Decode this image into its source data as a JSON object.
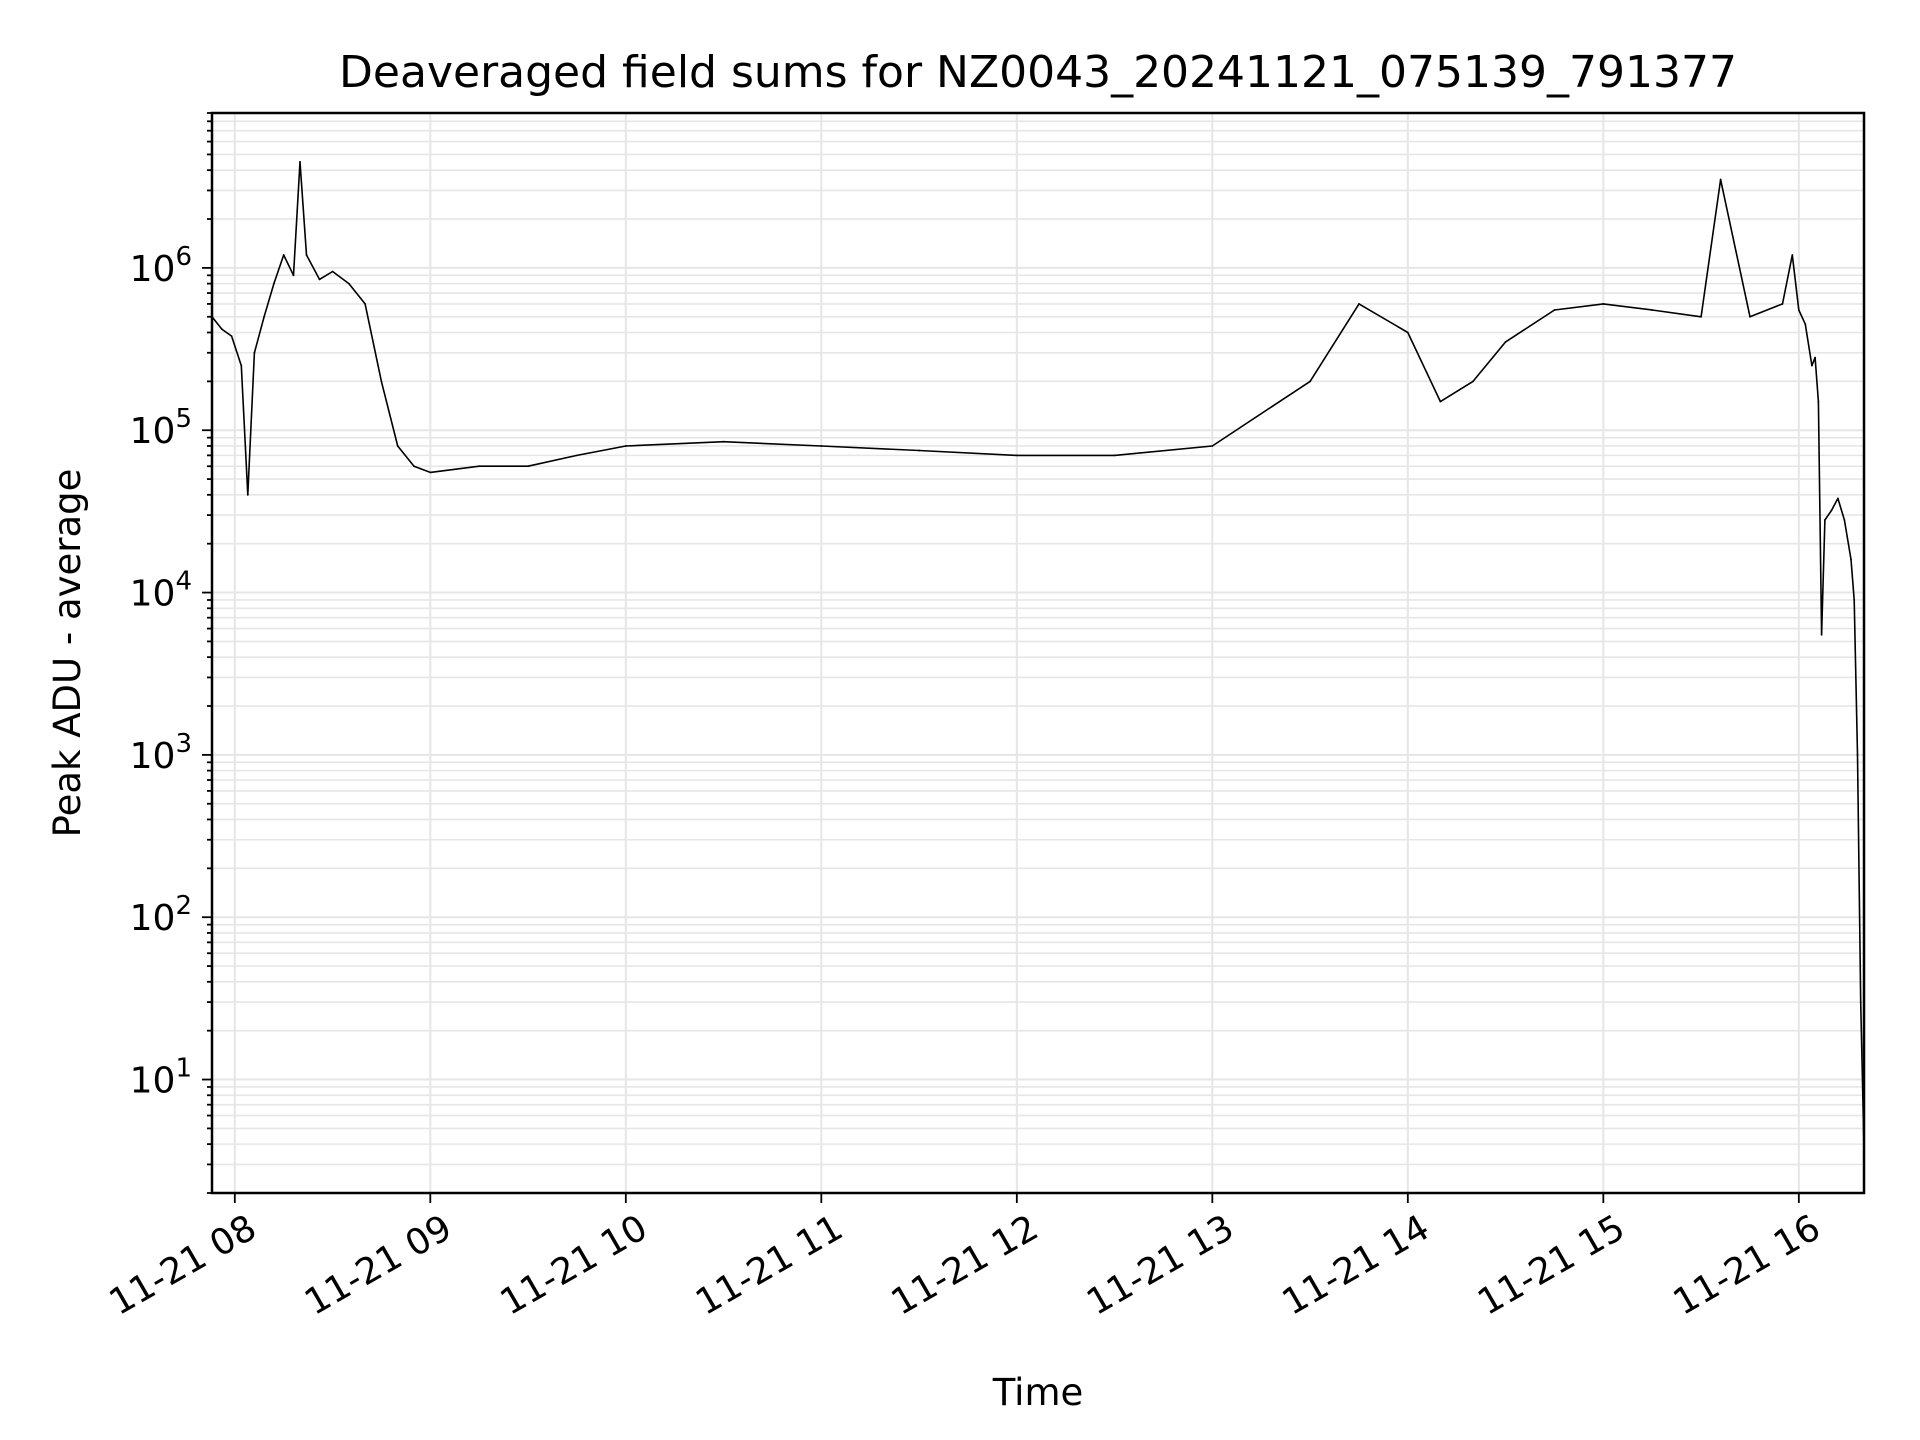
{
  "chart_data": {
    "type": "line",
    "title": "Deaveraged field sums for NZ0043_20241121_075139_791377",
    "xlabel": "Time",
    "ylabel": "Peak ADU - average",
    "yscale": "log",
    "ylim": [
      2,
      9000000
    ],
    "xlim": [
      "2024-11-21 07:53",
      "2024-11-21 16:20"
    ],
    "grid": true,
    "line_color": "#000000",
    "grid_color": "#e6e6e6",
    "x_ticks": [
      {
        "value": "2024-11-21 08:00",
        "label": "11-21 08"
      },
      {
        "value": "2024-11-21 09:00",
        "label": "11-21 09"
      },
      {
        "value": "2024-11-21 10:00",
        "label": "11-21 10"
      },
      {
        "value": "2024-11-21 11:00",
        "label": "11-21 11"
      },
      {
        "value": "2024-11-21 12:00",
        "label": "11-21 12"
      },
      {
        "value": "2024-11-21 13:00",
        "label": "11-21 13"
      },
      {
        "value": "2024-11-21 14:00",
        "label": "11-21 14"
      },
      {
        "value": "2024-11-21 15:00",
        "label": "11-21 15"
      },
      {
        "value": "2024-11-21 16:00",
        "label": "11-21 16"
      }
    ],
    "y_ticks": [
      {
        "value": 10,
        "base": "10",
        "exp": "1"
      },
      {
        "value": 100,
        "base": "10",
        "exp": "2"
      },
      {
        "value": 1000,
        "base": "10",
        "exp": "3"
      },
      {
        "value": 10000,
        "base": "10",
        "exp": "4"
      },
      {
        "value": 100000,
        "base": "10",
        "exp": "5"
      },
      {
        "value": 1000000,
        "base": "10",
        "exp": "6"
      }
    ],
    "series": [
      {
        "points": [
          [
            "2024-11-21 07:53",
            500000
          ],
          [
            "2024-11-21 07:56",
            420000
          ],
          [
            "2024-11-21 07:59",
            380000
          ],
          [
            "2024-11-21 08:02",
            250000
          ],
          [
            "2024-11-21 08:04",
            40000
          ],
          [
            "2024-11-21 08:06",
            300000
          ],
          [
            "2024-11-21 08:09",
            500000
          ],
          [
            "2024-11-21 08:12",
            800000
          ],
          [
            "2024-11-21 08:15",
            1200000
          ],
          [
            "2024-11-21 08:18",
            900000
          ],
          [
            "2024-11-21 08:20",
            4500000
          ],
          [
            "2024-11-21 08:22",
            1200000
          ],
          [
            "2024-11-21 08:26",
            850000
          ],
          [
            "2024-11-21 08:30",
            950000
          ],
          [
            "2024-11-21 08:35",
            800000
          ],
          [
            "2024-11-21 08:40",
            600000
          ],
          [
            "2024-11-21 08:45",
            200000
          ],
          [
            "2024-11-21 08:50",
            80000
          ],
          [
            "2024-11-21 08:55",
            60000
          ],
          [
            "2024-11-21 09:00",
            55000
          ],
          [
            "2024-11-21 09:15",
            60000
          ],
          [
            "2024-11-21 09:30",
            60000
          ],
          [
            "2024-11-21 09:45",
            70000
          ],
          [
            "2024-11-21 10:00",
            80000
          ],
          [
            "2024-11-21 10:30",
            85000
          ],
          [
            "2024-11-21 11:00",
            80000
          ],
          [
            "2024-11-21 11:30",
            75000
          ],
          [
            "2024-11-21 12:00",
            70000
          ],
          [
            "2024-11-21 12:30",
            70000
          ],
          [
            "2024-11-21 13:00",
            80000
          ],
          [
            "2024-11-21 13:30",
            200000
          ],
          [
            "2024-11-21 13:45",
            600000
          ],
          [
            "2024-11-21 14:00",
            400000
          ],
          [
            "2024-11-21 14:10",
            150000
          ],
          [
            "2024-11-21 14:20",
            200000
          ],
          [
            "2024-11-21 14:30",
            350000
          ],
          [
            "2024-11-21 14:45",
            550000
          ],
          [
            "2024-11-21 15:00",
            600000
          ],
          [
            "2024-11-21 15:15",
            550000
          ],
          [
            "2024-11-21 15:30",
            500000
          ],
          [
            "2024-11-21 15:36",
            3500000
          ],
          [
            "2024-11-21 15:45",
            500000
          ],
          [
            "2024-11-21 15:55",
            600000
          ],
          [
            "2024-11-21 15:58",
            1200000
          ],
          [
            "2024-11-21 16:00",
            550000
          ],
          [
            "2024-11-21 16:02",
            450000
          ],
          [
            "2024-11-21 16:04",
            250000
          ],
          [
            "2024-11-21 16:05",
            280000
          ],
          [
            "2024-11-21 16:06",
            150000
          ],
          [
            "2024-11-21 16:07",
            5500
          ],
          [
            "2024-11-21 16:08",
            28000
          ],
          [
            "2024-11-21 16:10",
            32000
          ],
          [
            "2024-11-21 16:12",
            38000
          ],
          [
            "2024-11-21 16:14",
            28000
          ],
          [
            "2024-11-21 16:16",
            16000
          ],
          [
            "2024-11-21 16:17",
            9000
          ],
          [
            "2024-11-21 16:18",
            1000
          ],
          [
            "2024-11-21 16:19",
            30
          ],
          [
            "2024-11-21 16:20",
            3.7
          ]
        ]
      }
    ]
  }
}
